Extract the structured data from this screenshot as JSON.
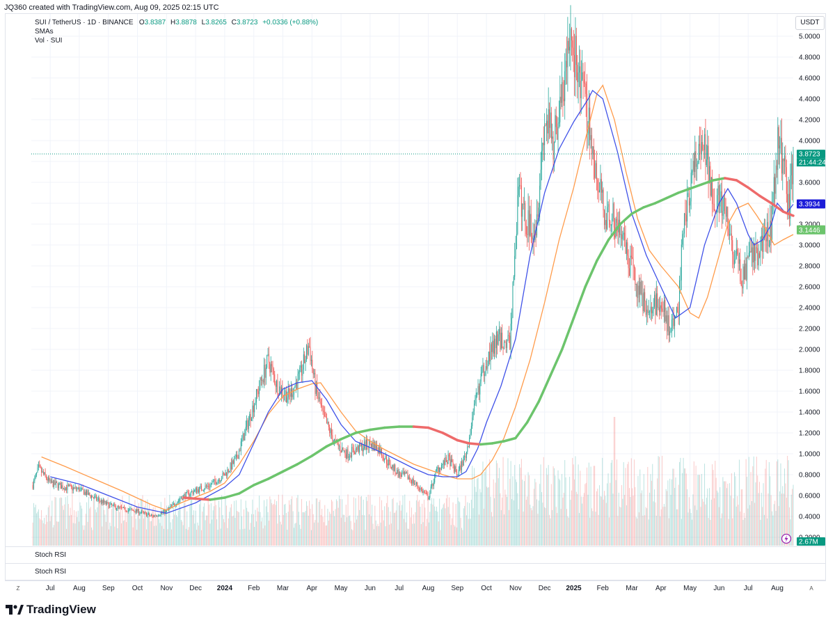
{
  "header": {
    "created_text": "JQ360 created with TradingView.com, Aug 09, 2025 02:15 UTC"
  },
  "legend": {
    "symbol": "SUI / TetherUS · 1D · BINANCE",
    "o_label": "O",
    "o_value": "3.8387",
    "h_label": "H",
    "h_value": "3.8878",
    "l_label": "L",
    "l_value": "3.8265",
    "c_label": "C",
    "c_value": "3.8723",
    "change": "+0.0336 (+0.88%)",
    "indicator_sma": "SMAs",
    "indicator_vol": "Vol · SUI"
  },
  "currency": "USDT",
  "panes": {
    "stoch1": "Stoch RSI",
    "stoch2": "Stoch RSI"
  },
  "price_labels": {
    "last": "3.8723",
    "countdown": "21:44:24",
    "sma_blue": "3.3934",
    "sma_green": "3.1446",
    "volume": "2.67M"
  },
  "axis_controls": {
    "left": "Z",
    "right": "A"
  },
  "logo_text": "TradingView",
  "colors": {
    "up": "#26a69a",
    "down": "#ef5350",
    "sma_fast": "#3f51e8",
    "sma_mid": "#ff9b4a",
    "sma_slow_up": "#6cc46c",
    "sma_slow_down": "#ee6a6a",
    "last_price": "#089981"
  },
  "chart_data": {
    "type": "candlestick",
    "title": "SUI / TetherUS · 1D · BINANCE",
    "y_range": [
      0.2,
      5.2
    ],
    "y_ticks": [
      0.2,
      0.4,
      0.6,
      0.8,
      1.0,
      1.2,
      1.4,
      1.6,
      1.8,
      2.0,
      2.2,
      2.4,
      2.6,
      2.8,
      3.0,
      3.2,
      3.4,
      3.6,
      3.8,
      4.0,
      4.2,
      4.4,
      4.6,
      4.8,
      5.0
    ],
    "y_tick_labels": [
      "0.2000",
      "0.4000",
      "0.6000",
      "0.8000",
      "1.0000",
      "1.2000",
      "1.4000",
      "1.6000",
      "1.8000",
      "2.0000",
      "2.2000",
      "2.4000",
      "2.6000",
      "2.8000",
      "3.0000",
      "3.2000",
      "3.4000",
      "3.6000",
      "3.8000",
      "4.0000",
      "4.2000",
      "4.4000",
      "4.6000",
      "4.8000",
      "5.0000"
    ],
    "x_range_months": [
      -0.65,
      25.55
    ],
    "x_ticks": [
      {
        "m": 0,
        "label": "Jul",
        "bold": false
      },
      {
        "m": 1,
        "label": "Aug",
        "bold": false
      },
      {
        "m": 2,
        "label": "Sep",
        "bold": false
      },
      {
        "m": 3,
        "label": "Oct",
        "bold": false
      },
      {
        "m": 4,
        "label": "Nov",
        "bold": false
      },
      {
        "m": 5,
        "label": "Dec",
        "bold": false
      },
      {
        "m": 6,
        "label": "2024",
        "bold": true
      },
      {
        "m": 7,
        "label": "Feb",
        "bold": false
      },
      {
        "m": 8,
        "label": "Mar",
        "bold": false
      },
      {
        "m": 9,
        "label": "Apr",
        "bold": false
      },
      {
        "m": 10,
        "label": "May",
        "bold": false
      },
      {
        "m": 11,
        "label": "Jun",
        "bold": false
      },
      {
        "m": 12,
        "label": "Jul",
        "bold": false
      },
      {
        "m": 13,
        "label": "Aug",
        "bold": false
      },
      {
        "m": 14,
        "label": "Sep",
        "bold": false
      },
      {
        "m": 15,
        "label": "Oct",
        "bold": false
      },
      {
        "m": 16,
        "label": "Nov",
        "bold": false
      },
      {
        "m": 17,
        "label": "Dec",
        "bold": false
      },
      {
        "m": 18,
        "label": "2025",
        "bold": true
      },
      {
        "m": 19,
        "label": "Feb",
        "bold": false
      },
      {
        "m": 20,
        "label": "Mar",
        "bold": false
      },
      {
        "m": 21,
        "label": "Apr",
        "bold": false
      },
      {
        "m": 22,
        "label": "May",
        "bold": false
      },
      {
        "m": 23,
        "label": "Jun",
        "bold": false
      },
      {
        "m": 24,
        "label": "Jul",
        "bold": false
      },
      {
        "m": 25,
        "label": "Aug",
        "bold": false
      }
    ],
    "price_path": [
      [
        -0.6,
        0.7
      ],
      [
        -0.4,
        0.86
      ],
      [
        0.0,
        0.72
      ],
      [
        0.5,
        0.68
      ],
      [
        1.0,
        0.66
      ],
      [
        1.5,
        0.58
      ],
      [
        2.0,
        0.51
      ],
      [
        2.5,
        0.47
      ],
      [
        3.0,
        0.45
      ],
      [
        3.5,
        0.4
      ],
      [
        4.0,
        0.45
      ],
      [
        4.5,
        0.58
      ],
      [
        5.0,
        0.65
      ],
      [
        5.5,
        0.7
      ],
      [
        6.0,
        0.8
      ],
      [
        6.4,
        0.95
      ],
      [
        6.8,
        1.3
      ],
      [
        7.2,
        1.65
      ],
      [
        7.5,
        1.9
      ],
      [
        7.8,
        1.65
      ],
      [
        8.2,
        1.55
      ],
      [
        8.6,
        1.75
      ],
      [
        8.9,
        2.05
      ],
      [
        9.1,
        1.65
      ],
      [
        9.4,
        1.35
      ],
      [
        9.8,
        1.1
      ],
      [
        10.2,
        1.0
      ],
      [
        10.6,
        1.05
      ],
      [
        11.0,
        1.1
      ],
      [
        11.3,
        1.05
      ],
      [
        11.6,
        0.92
      ],
      [
        12.0,
        0.8
      ],
      [
        12.3,
        0.78
      ],
      [
        12.6,
        0.7
      ],
      [
        13.0,
        0.58
      ],
      [
        13.3,
        0.85
      ],
      [
        13.7,
        0.95
      ],
      [
        14.0,
        0.8
      ],
      [
        14.3,
        1.0
      ],
      [
        14.7,
        1.6
      ],
      [
        15.0,
        1.9
      ],
      [
        15.4,
        2.1
      ],
      [
        15.8,
        2.05
      ],
      [
        16.1,
        3.5
      ],
      [
        16.4,
        3.2
      ],
      [
        16.7,
        3.2
      ],
      [
        17.0,
        4.2
      ],
      [
        17.3,
        4.0
      ],
      [
        17.6,
        4.4
      ],
      [
        17.9,
        5.0
      ],
      [
        18.2,
        4.6
      ],
      [
        18.5,
        4.2
      ],
      [
        18.8,
        3.6
      ],
      [
        19.1,
        3.3
      ],
      [
        19.5,
        3.2
      ],
      [
        19.8,
        2.9
      ],
      [
        20.2,
        2.6
      ],
      [
        20.6,
        2.35
      ],
      [
        21.0,
        2.5
      ],
      [
        21.3,
        2.15
      ],
      [
        21.6,
        2.4
      ],
      [
        21.8,
        3.3
      ],
      [
        22.2,
        3.8
      ],
      [
        22.5,
        3.9
      ],
      [
        22.8,
        3.5
      ],
      [
        23.2,
        3.3
      ],
      [
        23.5,
        2.9
      ],
      [
        23.8,
        2.7
      ],
      [
        24.1,
        2.85
      ],
      [
        24.4,
        2.95
      ],
      [
        24.8,
        3.2
      ],
      [
        25.0,
        3.95
      ],
      [
        25.25,
        3.8
      ],
      [
        25.4,
        3.3
      ],
      [
        25.55,
        3.87
      ]
    ],
    "sma_fast": [
      [
        0.0,
        0.78
      ],
      [
        1.0,
        0.71
      ],
      [
        2.0,
        0.6
      ],
      [
        3.0,
        0.49
      ],
      [
        4.0,
        0.43
      ],
      [
        5.0,
        0.53
      ],
      [
        6.0,
        0.68
      ],
      [
        6.5,
        0.8
      ],
      [
        7.0,
        1.1
      ],
      [
        7.5,
        1.4
      ],
      [
        8.0,
        1.62
      ],
      [
        8.5,
        1.68
      ],
      [
        9.0,
        1.7
      ],
      [
        9.5,
        1.52
      ],
      [
        10.0,
        1.28
      ],
      [
        10.5,
        1.12
      ],
      [
        11.0,
        1.06
      ],
      [
        11.5,
        1.0
      ],
      [
        12.0,
        0.93
      ],
      [
        12.5,
        0.86
      ],
      [
        13.0,
        0.8
      ],
      [
        13.5,
        0.78
      ],
      [
        14.0,
        0.78
      ],
      [
        14.3,
        0.83
      ],
      [
        14.7,
        1.05
      ],
      [
        15.0,
        1.3
      ],
      [
        15.5,
        1.65
      ],
      [
        16.0,
        2.1
      ],
      [
        16.5,
        2.9
      ],
      [
        17.0,
        3.5
      ],
      [
        17.5,
        3.92
      ],
      [
        18.0,
        4.18
      ],
      [
        18.5,
        4.4
      ],
      [
        18.65,
        4.48
      ],
      [
        19.0,
        4.4
      ],
      [
        19.5,
        3.9
      ],
      [
        20.0,
        3.3
      ],
      [
        20.5,
        2.9
      ],
      [
        21.0,
        2.6
      ],
      [
        21.5,
        2.3
      ],
      [
        22.0,
        2.4
      ],
      [
        22.5,
        3.0
      ],
      [
        23.0,
        3.4
      ],
      [
        23.3,
        3.54
      ],
      [
        23.6,
        3.4
      ],
      [
        24.0,
        3.1
      ],
      [
        24.2,
        3.0
      ],
      [
        24.5,
        3.05
      ],
      [
        24.8,
        3.2
      ],
      [
        25.0,
        3.4
      ],
      [
        25.3,
        3.3
      ],
      [
        25.55,
        3.39
      ]
    ],
    "sma_mid": [
      [
        -0.3,
        0.97
      ],
      [
        0.5,
        0.88
      ],
      [
        1.5,
        0.76
      ],
      [
        2.5,
        0.64
      ],
      [
        3.5,
        0.51
      ],
      [
        4.0,
        0.46
      ],
      [
        4.5,
        0.53
      ],
      [
        5.5,
        0.64
      ],
      [
        6.0,
        0.72
      ],
      [
        6.5,
        0.9
      ],
      [
        7.0,
        1.12
      ],
      [
        7.5,
        1.38
      ],
      [
        8.0,
        1.55
      ],
      [
        8.5,
        1.62
      ],
      [
        9.0,
        1.67
      ],
      [
        9.3,
        1.68
      ],
      [
        9.5,
        1.6
      ],
      [
        10.0,
        1.4
      ],
      [
        10.5,
        1.22
      ],
      [
        11.0,
        1.12
      ],
      [
        11.5,
        1.04
      ],
      [
        12.0,
        0.97
      ],
      [
        12.5,
        0.9
      ],
      [
        13.0,
        0.85
      ],
      [
        13.5,
        0.8
      ],
      [
        14.0,
        0.76
      ],
      [
        14.5,
        0.76
      ],
      [
        14.8,
        0.8
      ],
      [
        15.2,
        0.94
      ],
      [
        15.6,
        1.15
      ],
      [
        16.0,
        1.45
      ],
      [
        16.5,
        1.9
      ],
      [
        17.0,
        2.45
      ],
      [
        17.5,
        3.05
      ],
      [
        18.0,
        3.55
      ],
      [
        18.3,
        3.9
      ],
      [
        18.8,
        4.45
      ],
      [
        19.0,
        4.53
      ],
      [
        19.4,
        4.2
      ],
      [
        19.8,
        3.7
      ],
      [
        20.2,
        3.25
      ],
      [
        20.6,
        2.95
      ],
      [
        21.0,
        2.8
      ],
      [
        21.3,
        2.7
      ],
      [
        21.6,
        2.6
      ],
      [
        22.0,
        2.35
      ],
      [
        22.3,
        2.3
      ],
      [
        22.6,
        2.5
      ],
      [
        23.0,
        2.9
      ],
      [
        23.3,
        3.2
      ],
      [
        23.6,
        3.35
      ],
      [
        24.0,
        3.4
      ],
      [
        24.3,
        3.28
      ],
      [
        24.6,
        3.15
      ],
      [
        24.9,
        3.0
      ],
      [
        25.2,
        3.05
      ],
      [
        25.55,
        3.1
      ]
    ],
    "sma_slow": [
      [
        4.6,
        0.58
      ],
      [
        5.0,
        0.57
      ],
      [
        5.5,
        0.56
      ],
      [
        6.0,
        0.58
      ],
      [
        6.5,
        0.62
      ],
      [
        7.0,
        0.7
      ],
      [
        7.5,
        0.76
      ],
      [
        8.0,
        0.83
      ],
      [
        8.5,
        0.9
      ],
      [
        9.0,
        0.98
      ],
      [
        9.5,
        1.07
      ],
      [
        10.0,
        1.14
      ],
      [
        10.5,
        1.2
      ],
      [
        11.0,
        1.23
      ],
      [
        11.5,
        1.25
      ],
      [
        12.0,
        1.26
      ],
      [
        12.5,
        1.26
      ],
      [
        13.0,
        1.25
      ],
      [
        13.5,
        1.2
      ],
      [
        14.0,
        1.13
      ],
      [
        14.4,
        1.1
      ],
      [
        14.8,
        1.09
      ],
      [
        15.2,
        1.1
      ],
      [
        15.6,
        1.12
      ],
      [
        16.0,
        1.15
      ],
      [
        16.4,
        1.3
      ],
      [
        16.8,
        1.5
      ],
      [
        17.2,
        1.75
      ],
      [
        17.6,
        2.0
      ],
      [
        18.0,
        2.3
      ],
      [
        18.4,
        2.6
      ],
      [
        18.8,
        2.85
      ],
      [
        19.2,
        3.05
      ],
      [
        19.6,
        3.2
      ],
      [
        20.0,
        3.3
      ],
      [
        20.4,
        3.36
      ],
      [
        20.8,
        3.4
      ],
      [
        21.2,
        3.45
      ],
      [
        21.6,
        3.5
      ],
      [
        22.0,
        3.54
      ],
      [
        22.4,
        3.58
      ],
      [
        22.8,
        3.62
      ],
      [
        23.2,
        3.64
      ],
      [
        23.6,
        3.62
      ],
      [
        24.0,
        3.55
      ],
      [
        24.4,
        3.47
      ],
      [
        24.8,
        3.4
      ],
      [
        25.2,
        3.32
      ],
      [
        25.55,
        3.28
      ]
    ],
    "last_price": 3.8723,
    "volume_spikes": [
      {
        "m": 15.0,
        "v": 0.35
      },
      {
        "m": 16.2,
        "v": 0.45
      },
      {
        "m": 17.1,
        "v": 0.55
      },
      {
        "m": 18.7,
        "v": 0.62
      },
      {
        "m": 19.4,
        "v": 1.0
      },
      {
        "m": 21.8,
        "v": 0.6
      },
      {
        "m": 22.3,
        "v": 0.55
      },
      {
        "m": 23.2,
        "v": 0.5
      }
    ]
  }
}
